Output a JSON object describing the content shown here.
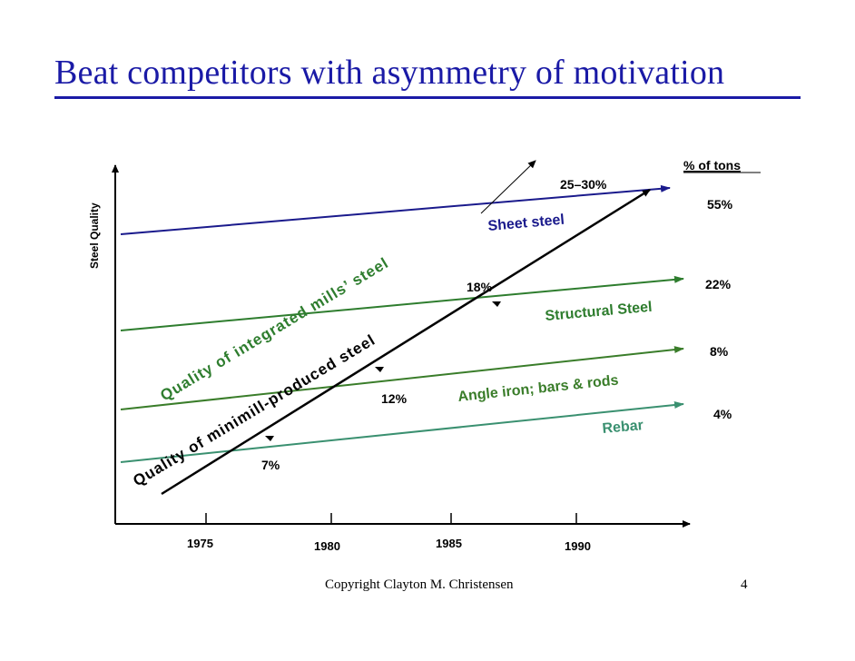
{
  "slide": {
    "title": "Beat competitors with asymmetry of motivation",
    "footer": "Copyright Clayton M. Christensen",
    "page_number": "4"
  },
  "diagram": {
    "y_axis_label": "Steel Quality",
    "x_ticks": [
      "1975",
      "1980",
      "1985",
      "1990"
    ],
    "column_header": "% of tons",
    "colors": {
      "sheet": "#1a1a8c",
      "structural": "#2e7d2e",
      "angle": "#3a7d2a",
      "rebar": "#3a9070",
      "arrow": "#000000"
    },
    "segments": [
      {
        "name": "Sheet steel",
        "share": "55%"
      },
      {
        "name": "Structural Steel",
        "share": "22%"
      },
      {
        "name": "Angle iron; bars & rods",
        "share": "8%"
      },
      {
        "name": "Rebar",
        "share": "4%"
      }
    ],
    "integrated_label": "Quality of integrated mills’ steel",
    "minimill_label": "Quality of minimill-produced steel",
    "minimill_points": [
      "7%",
      "12%",
      "18%",
      "25–30%"
    ]
  }
}
